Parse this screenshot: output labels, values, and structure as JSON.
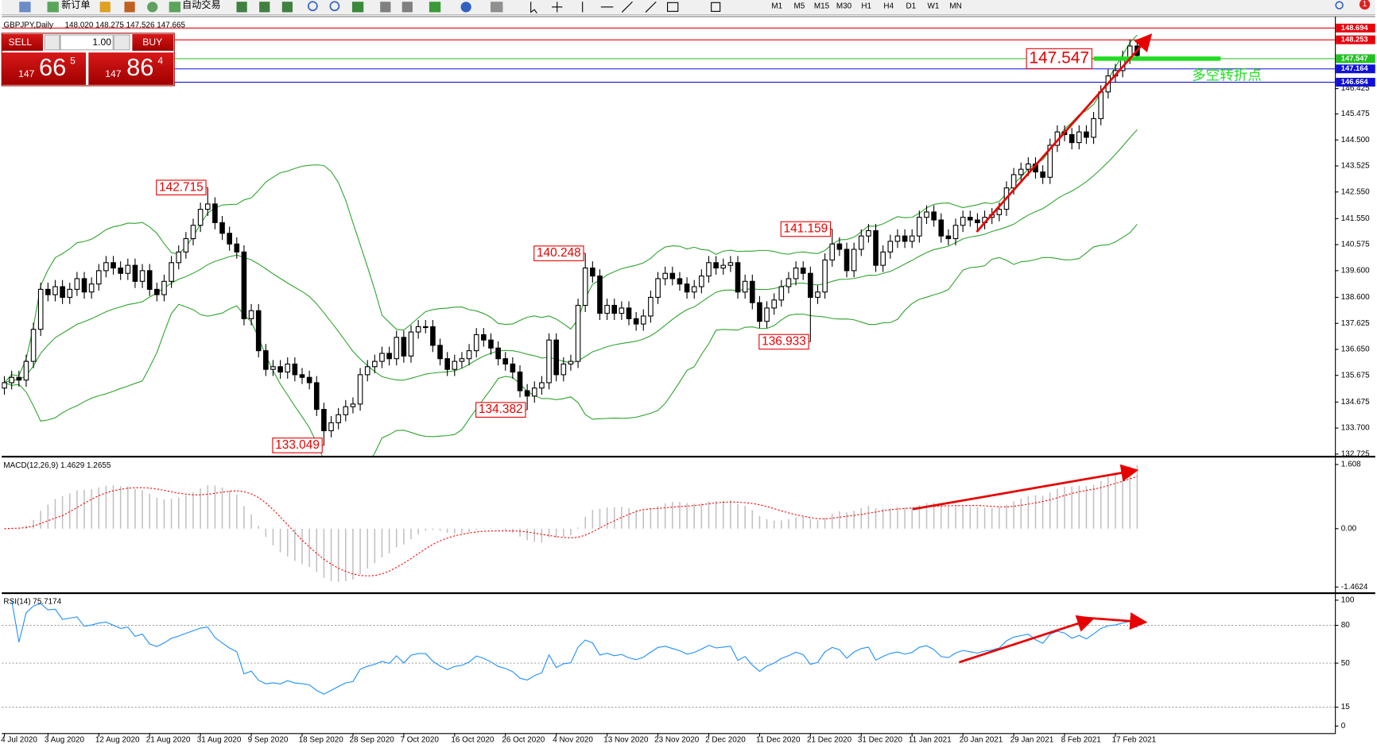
{
  "toolbar": {
    "new_order": "新订单",
    "auto_trading": "自动交易",
    "timeframes": [
      "M1",
      "M5",
      "M15",
      "M30",
      "H1",
      "H4",
      "D1",
      "W1",
      "MN"
    ],
    "notifications": "1"
  },
  "trade_panel": {
    "sell": "SELL",
    "buy": "BUY",
    "lots": "1.00",
    "sell_price": {
      "big": "147",
      "pips": "66",
      "point": "5"
    },
    "buy_price": {
      "big": "147",
      "pips": "86",
      "point": "4"
    }
  },
  "chart_data": [
    {
      "type": "candlestick",
      "title": "GBPJPY,Daily",
      "ohlc_header": "148.020 148.275 147.526 147.665",
      "up_color": "#ffffff",
      "down_color": "#000000",
      "band_color": "#2fa52f",
      "ylim": [
        132.66,
        149.09
      ],
      "yticks": [
        146.425,
        145.475,
        {
          "value": 144.5,
          "label": "144.500"
        },
        143.525,
        {
          "value": 142.55,
          "label": "142.550"
        },
        {
          "value": 141.55,
          "label": "141.550"
        },
        140.575,
        {
          "value": 139.6,
          "label": "139.600"
        },
        {
          "value": 138.6,
          "label": "138.600"
        },
        137.625,
        {
          "value": 136.65,
          "label": "136.650"
        },
        135.675,
        134.675,
        {
          "value": 133.7,
          "label": "133.700"
        },
        132.725
      ],
      "price_lines": [
        {
          "value": 148.694,
          "color": "#e8000b"
        },
        {
          "value": 148.253,
          "color": "#e8000b"
        },
        {
          "value": 147.547,
          "color": "#22c022"
        },
        {
          "value": 147.164,
          "color": "#1010d8"
        },
        {
          "value": 146.664,
          "color": "#1010d8"
        }
      ],
      "annotations": [
        {
          "value": 142.715,
          "index": 28
        },
        {
          "value": 133.049,
          "index": 44
        },
        {
          "value": 134.382,
          "index": 72
        },
        {
          "value": 140.248,
          "index": 80
        },
        {
          "value": 136.933,
          "index": 111
        },
        {
          "value": 141.159,
          "index": 114
        }
      ],
      "pivot": {
        "value": 147.547,
        "index": 150,
        "note": "多空转折点",
        "color": "#22dd22"
      },
      "categories": [
        "4 Jul 2020",
        null,
        null,
        null,
        null,
        null,
        "3 Aug 2020",
        null,
        null,
        null,
        null,
        null,
        null,
        "12 Aug 2020",
        null,
        null,
        null,
        null,
        null,
        null,
        "21 Aug 2020",
        null,
        null,
        null,
        null,
        null,
        null,
        "31 Aug 2020",
        null,
        null,
        null,
        null,
        null,
        null,
        "9 Sep 2020",
        null,
        null,
        null,
        null,
        null,
        null,
        "18 Sep 2020",
        null,
        null,
        null,
        null,
        null,
        null,
        "28 Sep 2020",
        null,
        null,
        null,
        null,
        null,
        null,
        "7 Oct 2020",
        null,
        null,
        null,
        null,
        null,
        null,
        "16 Oct 2020",
        null,
        null,
        null,
        null,
        null,
        null,
        "26 Oct 2020",
        null,
        null,
        null,
        null,
        null,
        null,
        "4 Nov 2020",
        null,
        null,
        null,
        null,
        null,
        null,
        "13 Nov 2020",
        null,
        null,
        null,
        null,
        null,
        null,
        "23 Nov 2020",
        null,
        null,
        null,
        null,
        null,
        null,
        "2 Dec 2020",
        null,
        null,
        null,
        null,
        null,
        null,
        "11 Dec 2020",
        null,
        null,
        null,
        null,
        null,
        null,
        "21 Dec 2020",
        null,
        null,
        null,
        null,
        null,
        null,
        "31 Dec 2020",
        null,
        null,
        null,
        null,
        null,
        null,
        "11 Jan 2021",
        null,
        null,
        null,
        null,
        null,
        null,
        "20 Jan 2021",
        null,
        null,
        null,
        null,
        null,
        null,
        "29 Jan 2021",
        null,
        null,
        null,
        null,
        null,
        null,
        "8 Feb 2021",
        null,
        null,
        null,
        null,
        null,
        null,
        "17 Feb 2021",
        null,
        null,
        null
      ],
      "candles": [
        [
          135.2,
          135.65,
          134.95,
          135.4
        ],
        [
          135.4,
          135.85,
          135.15,
          135.6
        ],
        [
          135.6,
          135.85,
          135.25,
          135.5
        ],
        [
          135.5,
          136.45,
          135.25,
          136.2
        ],
        [
          136.2,
          137.65,
          135.95,
          137.4
        ],
        [
          137.4,
          139.15,
          137.15,
          138.9
        ],
        [
          138.9,
          139.15,
          138.45,
          138.7
        ],
        [
          138.7,
          139.25,
          138.45,
          139.0
        ],
        [
          139.0,
          139.25,
          138.35,
          138.6
        ],
        [
          138.6,
          139.15,
          138.35,
          138.9
        ],
        [
          138.9,
          139.55,
          138.65,
          139.3
        ],
        [
          139.3,
          139.55,
          138.55,
          138.8
        ],
        [
          138.8,
          139.35,
          138.55,
          139.1
        ],
        [
          139.1,
          139.85,
          138.85,
          139.6
        ],
        [
          139.6,
          140.15,
          139.35,
          139.9
        ],
        [
          139.9,
          140.15,
          139.45,
          139.7
        ],
        [
          139.7,
          139.95,
          139.25,
          139.5
        ],
        [
          139.5,
          140.05,
          139.25,
          139.8
        ],
        [
          139.8,
          140.05,
          138.95,
          139.2
        ],
        [
          139.2,
          139.85,
          138.95,
          139.6
        ],
        [
          139.6,
          139.85,
          138.65,
          138.9
        ],
        [
          138.9,
          139.15,
          138.45,
          138.7
        ],
        [
          138.7,
          139.45,
          138.45,
          139.2
        ],
        [
          139.2,
          140.15,
          138.95,
          139.9
        ],
        [
          139.9,
          140.55,
          139.65,
          140.3
        ],
        [
          140.3,
          141.05,
          140.05,
          140.8
        ],
        [
          140.8,
          141.55,
          140.55,
          141.3
        ],
        [
          141.3,
          142.15,
          141.05,
          141.9
        ],
        [
          141.9,
          142.715,
          141.65,
          142.1
        ],
        [
          142.1,
          142.35,
          141.15,
          141.4
        ],
        [
          141.4,
          141.65,
          140.75,
          141.0
        ],
        [
          141.0,
          141.25,
          140.35,
          140.6
        ],
        [
          140.6,
          140.85,
          140.05,
          140.3
        ],
        [
          140.3,
          140.55,
          137.55,
          137.8
        ],
        [
          137.8,
          138.35,
          137.55,
          138.1
        ],
        [
          138.1,
          138.35,
          136.35,
          136.6
        ],
        [
          136.6,
          136.85,
          135.65,
          135.9
        ],
        [
          135.9,
          136.25,
          135.65,
          136.0
        ],
        [
          136.0,
          136.25,
          135.55,
          135.8
        ],
        [
          135.8,
          136.35,
          135.55,
          136.1
        ],
        [
          136.1,
          136.35,
          135.45,
          135.7
        ],
        [
          135.7,
          135.95,
          135.35,
          135.6
        ],
        [
          135.6,
          135.85,
          135.15,
          135.4
        ],
        [
          135.4,
          135.65,
          134.15,
          134.4
        ],
        [
          134.4,
          134.65,
          133.049,
          133.6
        ],
        [
          133.6,
          134.15,
          133.35,
          133.9
        ],
        [
          133.9,
          134.45,
          133.65,
          134.2
        ],
        [
          134.2,
          134.75,
          133.95,
          134.5
        ],
        [
          134.5,
          134.85,
          134.25,
          134.6
        ],
        [
          134.6,
          135.95,
          134.35,
          135.7
        ],
        [
          135.7,
          136.25,
          135.45,
          136.0
        ],
        [
          136.0,
          136.45,
          135.75,
          136.2
        ],
        [
          136.2,
          136.75,
          135.95,
          136.5
        ],
        [
          136.5,
          136.75,
          136.05,
          136.3
        ],
        [
          136.3,
          137.35,
          136.05,
          137.1
        ],
        [
          137.1,
          137.35,
          136.15,
          136.4
        ],
        [
          136.4,
          137.55,
          136.15,
          137.3
        ],
        [
          137.3,
          137.75,
          137.05,
          137.5
        ],
        [
          137.5,
          137.75,
          137.25,
          137.5
        ],
        [
          137.5,
          137.75,
          136.55,
          136.8
        ],
        [
          136.8,
          137.05,
          136.05,
          136.3
        ],
        [
          136.3,
          136.55,
          135.65,
          135.9
        ],
        [
          135.9,
          136.45,
          135.65,
          136.2
        ],
        [
          136.2,
          136.55,
          135.95,
          136.3
        ],
        [
          136.3,
          136.85,
          136.05,
          136.6
        ],
        [
          136.6,
          137.45,
          136.35,
          137.2
        ],
        [
          137.2,
          137.45,
          136.75,
          137.0
        ],
        [
          137.0,
          137.25,
          136.45,
          136.7
        ],
        [
          136.7,
          136.95,
          136.05,
          136.3
        ],
        [
          136.3,
          136.55,
          135.85,
          136.1
        ],
        [
          136.1,
          136.35,
          135.55,
          135.8
        ],
        [
          135.8,
          136.05,
          134.85,
          135.1
        ],
        [
          135.1,
          135.35,
          134.382,
          134.9
        ],
        [
          134.9,
          135.45,
          134.65,
          135.2
        ],
        [
          135.2,
          135.65,
          134.95,
          135.4
        ],
        [
          135.4,
          137.25,
          135.15,
          137.0
        ],
        [
          137.0,
          137.25,
          135.45,
          135.7
        ],
        [
          135.7,
          136.35,
          135.45,
          136.1
        ],
        [
          136.1,
          136.45,
          135.85,
          136.2
        ],
        [
          136.2,
          138.55,
          135.95,
          138.3
        ],
        [
          138.3,
          140.248,
          138.05,
          139.7
        ],
        [
          139.7,
          139.95,
          139.15,
          139.4
        ],
        [
          139.4,
          139.65,
          137.75,
          138.0
        ],
        [
          138.0,
          138.55,
          137.75,
          138.3
        ],
        [
          138.3,
          138.55,
          137.75,
          138.0
        ],
        [
          138.0,
          138.45,
          137.75,
          138.2
        ],
        [
          138.2,
          138.45,
          137.55,
          137.8
        ],
        [
          137.8,
          138.05,
          137.35,
          137.6
        ],
        [
          137.6,
          138.15,
          137.35,
          137.9
        ],
        [
          137.9,
          138.85,
          137.65,
          138.6
        ],
        [
          138.6,
          139.55,
          138.35,
          139.3
        ],
        [
          139.3,
          139.75,
          139.05,
          139.5
        ],
        [
          139.5,
          139.75,
          139.05,
          139.3
        ],
        [
          139.3,
          139.55,
          138.85,
          139.1
        ],
        [
          139.1,
          139.35,
          138.55,
          138.8
        ],
        [
          138.8,
          139.25,
          138.55,
          139.0
        ],
        [
          139.0,
          139.65,
          138.75,
          139.4
        ],
        [
          139.4,
          140.15,
          139.15,
          139.9
        ],
        [
          139.9,
          140.15,
          139.45,
          139.7
        ],
        [
          139.7,
          140.05,
          139.45,
          139.8
        ],
        [
          139.8,
          140.15,
          139.55,
          139.9
        ],
        [
          139.9,
          140.15,
          138.55,
          138.8
        ],
        [
          138.8,
          139.45,
          138.55,
          139.2
        ],
        [
          139.2,
          139.45,
          138.15,
          138.4
        ],
        [
          138.4,
          138.65,
          137.45,
          137.7
        ],
        [
          137.7,
          138.45,
          137.45,
          138.2
        ],
        [
          138.2,
          138.75,
          137.95,
          138.5
        ],
        [
          138.5,
          139.25,
          138.25,
          139.0
        ],
        [
          139.0,
          139.55,
          138.75,
          139.3
        ],
        [
          139.3,
          139.95,
          139.05,
          139.7
        ],
        [
          139.7,
          139.95,
          139.25,
          139.5
        ],
        [
          139.5,
          139.75,
          136.933,
          138.6
        ],
        [
          138.6,
          139.05,
          138.35,
          138.8
        ],
        [
          138.8,
          140.25,
          138.55,
          140.0
        ],
        [
          140.0,
          141.159,
          139.75,
          140.6
        ],
        [
          140.6,
          140.85,
          140.15,
          140.4
        ],
        [
          140.4,
          140.65,
          139.35,
          139.6
        ],
        [
          139.6,
          140.65,
          139.35,
          140.4
        ],
        [
          140.4,
          141.15,
          140.15,
          140.9
        ],
        [
          140.9,
          141.35,
          140.65,
          141.1
        ],
        [
          141.1,
          141.35,
          139.55,
          139.8
        ],
        [
          139.8,
          140.55,
          139.55,
          140.3
        ],
        [
          140.3,
          140.95,
          140.05,
          140.7
        ],
        [
          140.7,
          141.15,
          140.45,
          140.9
        ],
        [
          140.9,
          141.15,
          140.45,
          140.7
        ],
        [
          140.7,
          141.15,
          140.45,
          140.9
        ],
        [
          140.9,
          141.85,
          140.65,
          141.6
        ],
        [
          141.6,
          142.05,
          141.35,
          141.8
        ],
        [
          141.8,
          142.05,
          141.25,
          141.5
        ],
        [
          141.5,
          141.75,
          140.65,
          140.9
        ],
        [
          140.9,
          141.15,
          140.55,
          140.8
        ],
        [
          140.8,
          141.55,
          140.55,
          141.3
        ],
        [
          141.3,
          141.85,
          141.05,
          141.6
        ],
        [
          141.6,
          141.85,
          141.25,
          141.5
        ],
        [
          141.5,
          141.75,
          141.15,
          141.4
        ],
        [
          141.4,
          141.85,
          141.15,
          141.6
        ],
        [
          141.6,
          141.95,
          141.35,
          141.7
        ],
        [
          141.7,
          142.15,
          141.45,
          141.9
        ],
        [
          141.9,
          142.95,
          141.65,
          142.7
        ],
        [
          142.7,
          143.45,
          142.45,
          143.2
        ],
        [
          143.2,
          143.65,
          142.95,
          143.4
        ],
        [
          143.4,
          143.85,
          143.15,
          143.6
        ],
        [
          143.6,
          143.85,
          143.05,
          143.3
        ],
        [
          143.3,
          143.55,
          142.85,
          143.1
        ],
        [
          143.1,
          144.55,
          142.85,
          144.3
        ],
        [
          144.3,
          145.05,
          144.05,
          144.8
        ],
        [
          144.8,
          145.05,
          144.45,
          144.7
        ],
        [
          144.7,
          144.95,
          144.15,
          144.4
        ],
        [
          144.4,
          145.05,
          144.15,
          144.8
        ],
        [
          144.8,
          145.05,
          144.35,
          144.6
        ],
        [
          144.6,
          145.55,
          144.35,
          145.3
        ],
        [
          145.3,
          146.55,
          145.05,
          146.3
        ],
        [
          146.3,
          147.15,
          146.05,
          146.9
        ],
        [
          146.9,
          147.35,
          146.65,
          147.1
        ],
        [
          147.1,
          147.85,
          146.85,
          147.6
        ],
        [
          147.6,
          148.27,
          147.35,
          148.02
        ],
        [
          148.02,
          148.275,
          147.526,
          147.665
        ]
      ]
    },
    {
      "type": "macd",
      "title": "MACD(12,26,9) 1.4629 1.2655",
      "color": "#c0c0c0",
      "signal_color": "#ff0000",
      "ylim": [
        -1.594,
        1.783
      ],
      "yticks": [
        1.608,
        {
          "value": 0,
          "label": "0.00"
        },
        -1.4624
      ]
    },
    {
      "type": "rsi",
      "title": "RSI(14) 75.7174",
      "color": "#1e90ff",
      "level_color": "#a0a0a0",
      "ylim": [
        -5.6,
        104.9
      ],
      "yticks": [
        100,
        80,
        50,
        15,
        0
      ],
      "levels": [
        80,
        50,
        15
      ]
    }
  ]
}
